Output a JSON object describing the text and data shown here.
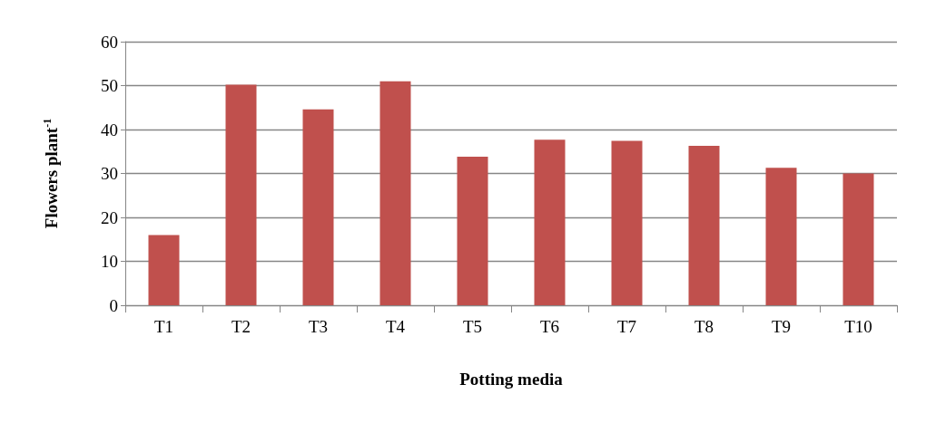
{
  "chart_data": {
    "type": "bar",
    "xlabel": "Potting media",
    "ylabel": "Flowers plant$^{-1}$",
    "categories": [
      "T1",
      "T2",
      "T3",
      "T4",
      "T5",
      "T6",
      "T7",
      "T8",
      "T9",
      "T10"
    ],
    "values": [
      16.0,
      50.2,
      44.6,
      51.0,
      33.8,
      37.7,
      37.4,
      36.3,
      31.3,
      30.0
    ],
    "color": "#c0504d",
    "ylim": [
      0,
      60
    ],
    "yticks": [
      0,
      10,
      20,
      30,
      40,
      50,
      60
    ],
    "grid": "y"
  }
}
